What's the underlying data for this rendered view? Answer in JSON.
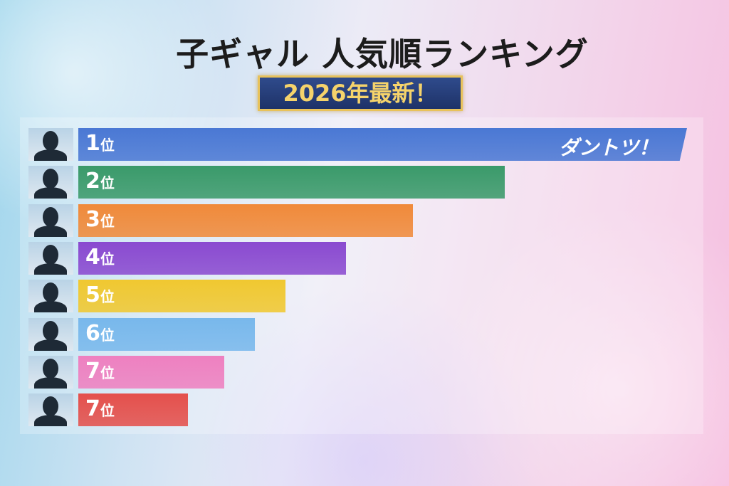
{
  "chart_data": {
    "type": "bar",
    "orientation": "horizontal",
    "title": "子ギャル 人気順ランキング",
    "subtitle": "2026年最新！",
    "categories": [
      "1位",
      "2位",
      "3位",
      "4位",
      "5位",
      "6位",
      "7位",
      "7位"
    ],
    "rank_numbers": [
      "1",
      "2",
      "3",
      "4",
      "5",
      "6",
      "7",
      "7"
    ],
    "rank_suffix": "位",
    "values": [
      100,
      70,
      55,
      44,
      34,
      29,
      24,
      18
    ],
    "value_unit": "relative popularity (% of top)",
    "colors": [
      "#4a78d4",
      "#3a9a6a",
      "#f08a3a",
      "#8a4ad0",
      "#f0c830",
      "#78b8ec",
      "#ee80c0",
      "#e4504c"
    ],
    "top_annotation": "ダントツ！",
    "axis": false,
    "grid": false
  }
}
